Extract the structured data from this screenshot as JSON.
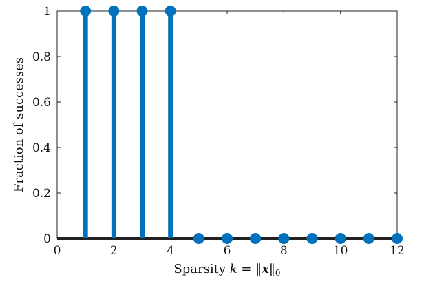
{
  "chart_data": {
    "type": "stem",
    "title": "",
    "xlabel": "Sparsity k = ‖x‖₀",
    "xlabel_parts": {
      "prefix": "Sparsity ",
      "var": "k",
      "eq": " = ‖",
      "vec": "x",
      "close": "‖",
      "sub": "0"
    },
    "ylabel": "Fraction of successes",
    "xlim": [
      0,
      12
    ],
    "ylim": [
      0,
      1
    ],
    "xticks": [
      0,
      2,
      4,
      6,
      8,
      10,
      12
    ],
    "yticks": [
      0,
      0.2,
      0.4,
      0.6,
      0.8,
      1
    ],
    "ytick_labels": [
      "0",
      "0.2",
      "0.4",
      "0.6",
      "0.8",
      "1"
    ],
    "grid": false,
    "x": [
      1,
      2,
      3,
      4,
      5,
      6,
      7,
      8,
      9,
      10,
      11,
      12
    ],
    "y": [
      1,
      1,
      1,
      1,
      0,
      0,
      0,
      0,
      0,
      0,
      0,
      0
    ],
    "colors": {
      "series": "#0072BD",
      "axis": "#222222",
      "baseline": "#222222"
    }
  }
}
